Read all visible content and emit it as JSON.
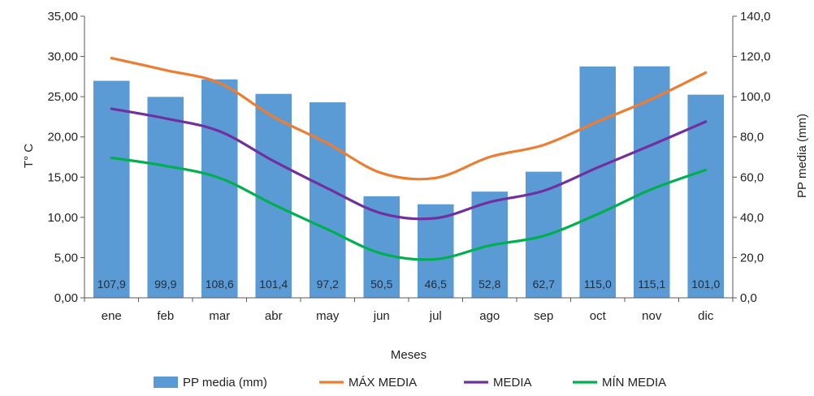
{
  "chart_data": {
    "type": "bar",
    "categories": [
      "ene",
      "feb",
      "mar",
      "abr",
      "may",
      "jun",
      "jul",
      "ago",
      "sep",
      "oct",
      "nov",
      "dic"
    ],
    "xlabel": "Meses",
    "ylabel_left": "T° C",
    "ylabel_right": "PP media (mm)",
    "ylim_left": [
      0,
      35
    ],
    "ylim_right": [
      0,
      140
    ],
    "yticks_left": [
      "0,00",
      "5,00",
      "10,00",
      "15,00",
      "20,00",
      "25,00",
      "30,00",
      "35,00"
    ],
    "yticks_right": [
      "0,0",
      "20,0",
      "40,0",
      "60,0",
      "80,0",
      "100,0",
      "120,0",
      "140,0"
    ],
    "grid": false,
    "legend_position": "bottom",
    "series": [
      {
        "name": "PP media (mm)",
        "type": "bar",
        "axis": "right",
        "color": "#5b9bd5",
        "values": [
          107.9,
          99.9,
          108.6,
          101.4,
          97.2,
          50.5,
          46.5,
          52.8,
          62.7,
          115.0,
          115.1,
          101.0
        ],
        "labels": [
          "107,9",
          "99,9",
          "108,6",
          "101,4",
          "97,2",
          "50,5",
          "46,5",
          "52,8",
          "62,7",
          "115,0",
          "115,1",
          "101,0"
        ]
      },
      {
        "name": "MÁX MEDIA",
        "type": "line",
        "axis": "left",
        "color": "#ed7d31",
        "values": [
          29.8,
          28.3,
          26.7,
          22.5,
          19.2,
          15.5,
          14.9,
          17.5,
          19.0,
          21.9,
          24.7,
          28.0
        ]
      },
      {
        "name": "MEDIA",
        "type": "line",
        "axis": "left",
        "color": "#7030a0",
        "values": [
          23.5,
          22.3,
          20.7,
          17.0,
          13.6,
          10.5,
          9.9,
          11.9,
          13.3,
          16.2,
          19.0,
          21.9
        ]
      },
      {
        "name": "MÍN MEDIA",
        "type": "line",
        "axis": "left",
        "color": "#00b050",
        "values": [
          17.4,
          16.4,
          14.9,
          11.6,
          8.5,
          5.5,
          4.8,
          6.5,
          7.7,
          10.4,
          13.5,
          15.9
        ]
      }
    ]
  }
}
